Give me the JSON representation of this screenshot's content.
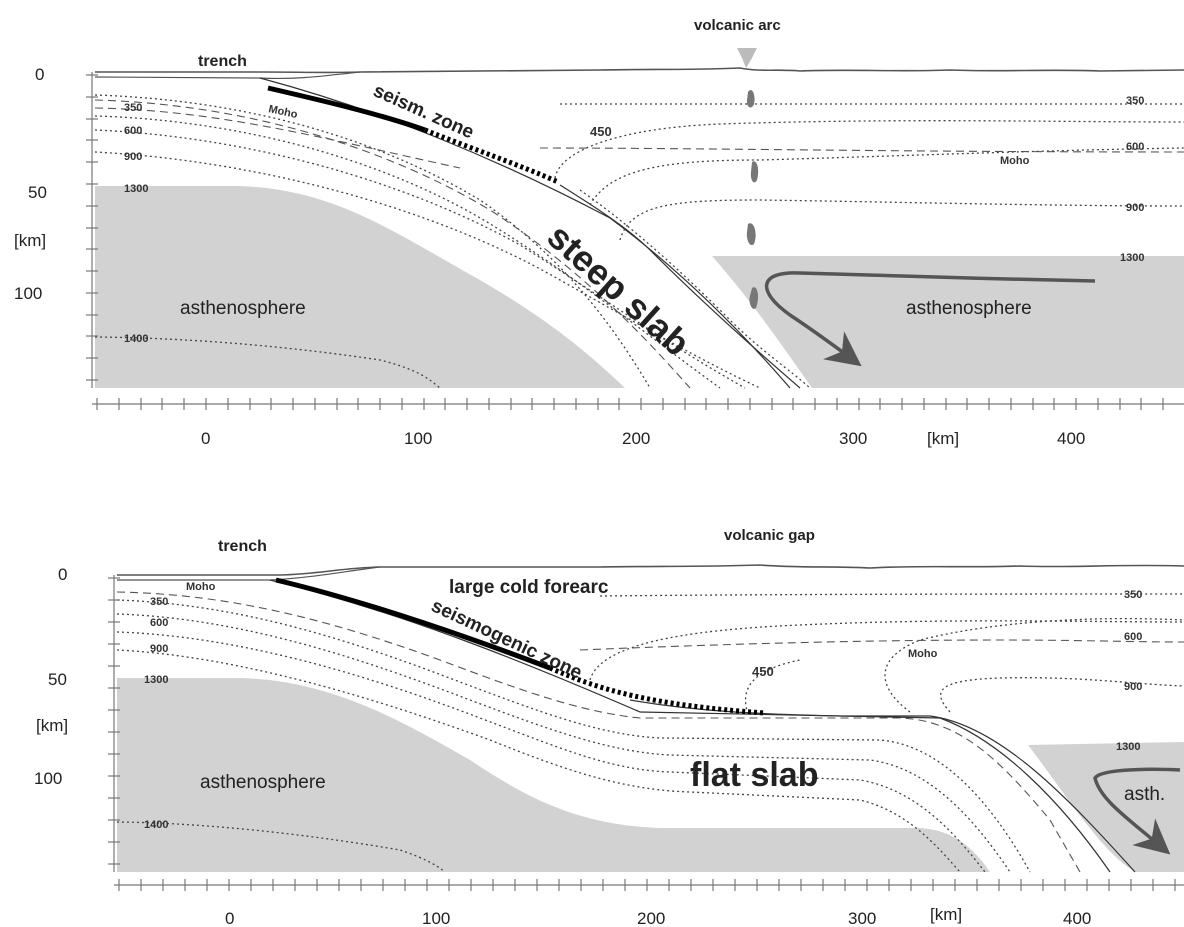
{
  "top_panel": {
    "labels": {
      "trench": "trench",
      "arc": "volcanic arc",
      "seismic": "seism. zone",
      "slab": "steep slab",
      "asth_left": "asthenosphere",
      "asth_right": "asthenosphere",
      "moho_left": "Moho",
      "moho_right": "Moho",
      "iso_450": "450"
    },
    "isotherms_left": [
      "350",
      "600",
      "900",
      "1300",
      "1400"
    ],
    "isotherms_right": [
      "350",
      "600",
      "900",
      "1300"
    ],
    "y_ticks": [
      "0",
      "50",
      "[km]",
      "100"
    ],
    "x_ticks": [
      "0",
      "100",
      "200",
      "300",
      "[km]",
      "400"
    ]
  },
  "bottom_panel": {
    "labels": {
      "trench": "trench",
      "gap": "volcanic gap",
      "forearc": "large cold forearc",
      "seismic": "seismogenic zone",
      "slab": "flat slab",
      "asth_left": "asthenosphere",
      "asth_right": "asth.",
      "moho_left": "Moho",
      "moho_right": "Moho",
      "iso_450": "450"
    },
    "isotherms_left": [
      "350",
      "600",
      "900",
      "1300",
      "1400"
    ],
    "isotherms_right": [
      "350",
      "600",
      "900",
      "1300"
    ],
    "y_ticks": [
      "0",
      "50",
      "[km]",
      "100"
    ],
    "x_ticks": [
      "0",
      "100",
      "200",
      "300",
      "[km]",
      "400"
    ]
  },
  "colors": {
    "asthenosphere": "#d2d2d2",
    "flow_arrow": "#555555",
    "seismic_zone": "#000000"
  }
}
